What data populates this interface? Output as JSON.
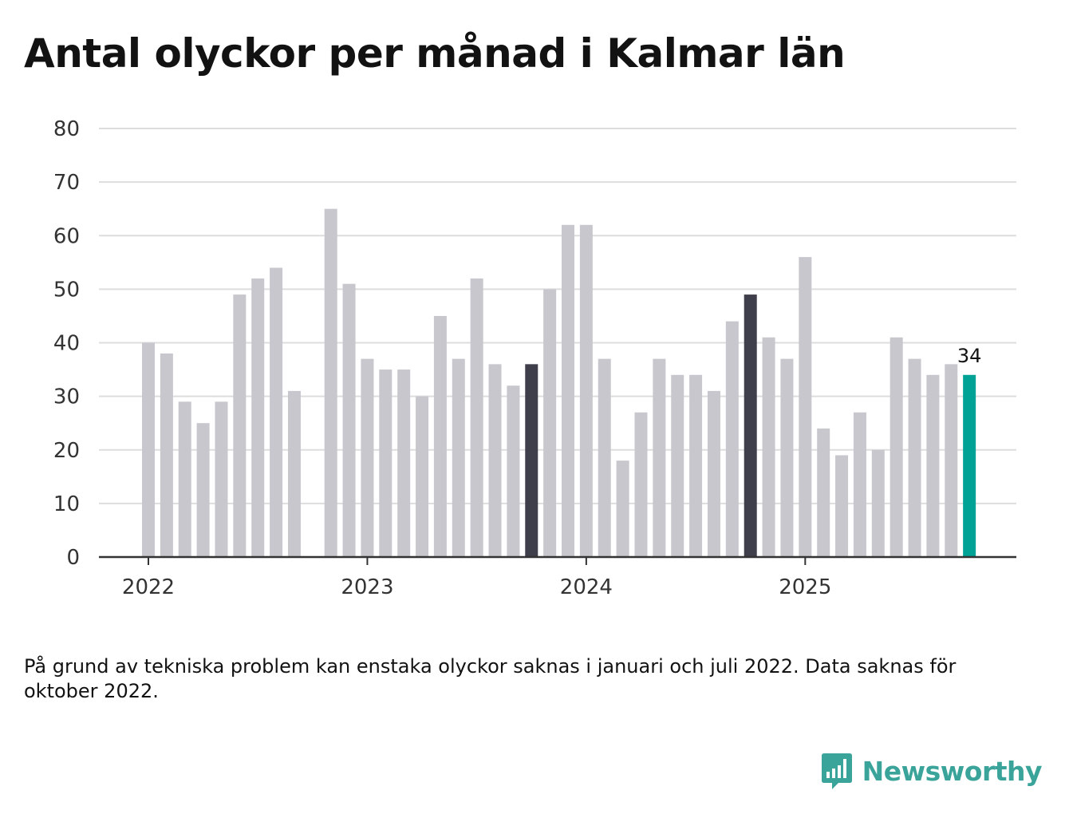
{
  "chart_data": {
    "type": "bar",
    "title": "Antal olyckor per månad i Kalmar län",
    "xlabel": "",
    "ylabel": "",
    "ylim": [
      0,
      80
    ],
    "yticks": [
      0,
      10,
      20,
      30,
      40,
      50,
      60,
      70,
      80
    ],
    "x_tick_labels": [
      "2022",
      "2023",
      "2024",
      "2025"
    ],
    "x_tick_months": [
      "2022-01",
      "2023-01",
      "2024-01",
      "2025-01"
    ],
    "months": [
      "2022-01",
      "2022-02",
      "2022-03",
      "2022-04",
      "2022-05",
      "2022-06",
      "2022-07",
      "2022-08",
      "2022-09",
      "2022-10",
      "2022-11",
      "2022-12",
      "2023-01",
      "2023-02",
      "2023-03",
      "2023-04",
      "2023-05",
      "2023-06",
      "2023-07",
      "2023-08",
      "2023-09",
      "2023-10",
      "2023-11",
      "2023-12",
      "2024-01",
      "2024-02",
      "2024-03",
      "2024-04",
      "2024-05",
      "2024-06",
      "2024-07",
      "2024-08",
      "2024-09",
      "2024-10",
      "2024-11",
      "2024-12",
      "2025-01",
      "2025-02",
      "2025-03",
      "2025-04",
      "2025-05",
      "2025-06",
      "2025-07",
      "2025-08",
      "2025-09",
      "2025-10"
    ],
    "values": [
      40,
      38,
      29,
      25,
      29,
      49,
      52,
      54,
      31,
      null,
      65,
      51,
      37,
      35,
      35,
      30,
      45,
      37,
      52,
      36,
      32,
      36,
      50,
      62,
      62,
      37,
      18,
      27,
      37,
      34,
      34,
      31,
      44,
      49,
      41,
      37,
      56,
      24,
      19,
      27,
      20,
      41,
      37,
      34,
      36,
      34
    ],
    "highlight": {
      "2023-10": "dark",
      "2024-10": "dark",
      "2025-10": "accent"
    },
    "colors": {
      "default": "#c8c7ce",
      "dark": "#3f3e4b",
      "accent": "#00a296",
      "grid": "#dddddd",
      "axis": "#333333"
    },
    "annotations": [
      {
        "month": "2025-10",
        "text": "34"
      }
    ]
  },
  "note": "På grund av tekniska problem kan enstaka olyckor saknas i januari och juli 2022. Data saknas för oktober 2022.",
  "brand": {
    "name": "Newsworthy",
    "color": "#3aa39a",
    "icon": "bar-chart-speech-bubble-icon"
  }
}
